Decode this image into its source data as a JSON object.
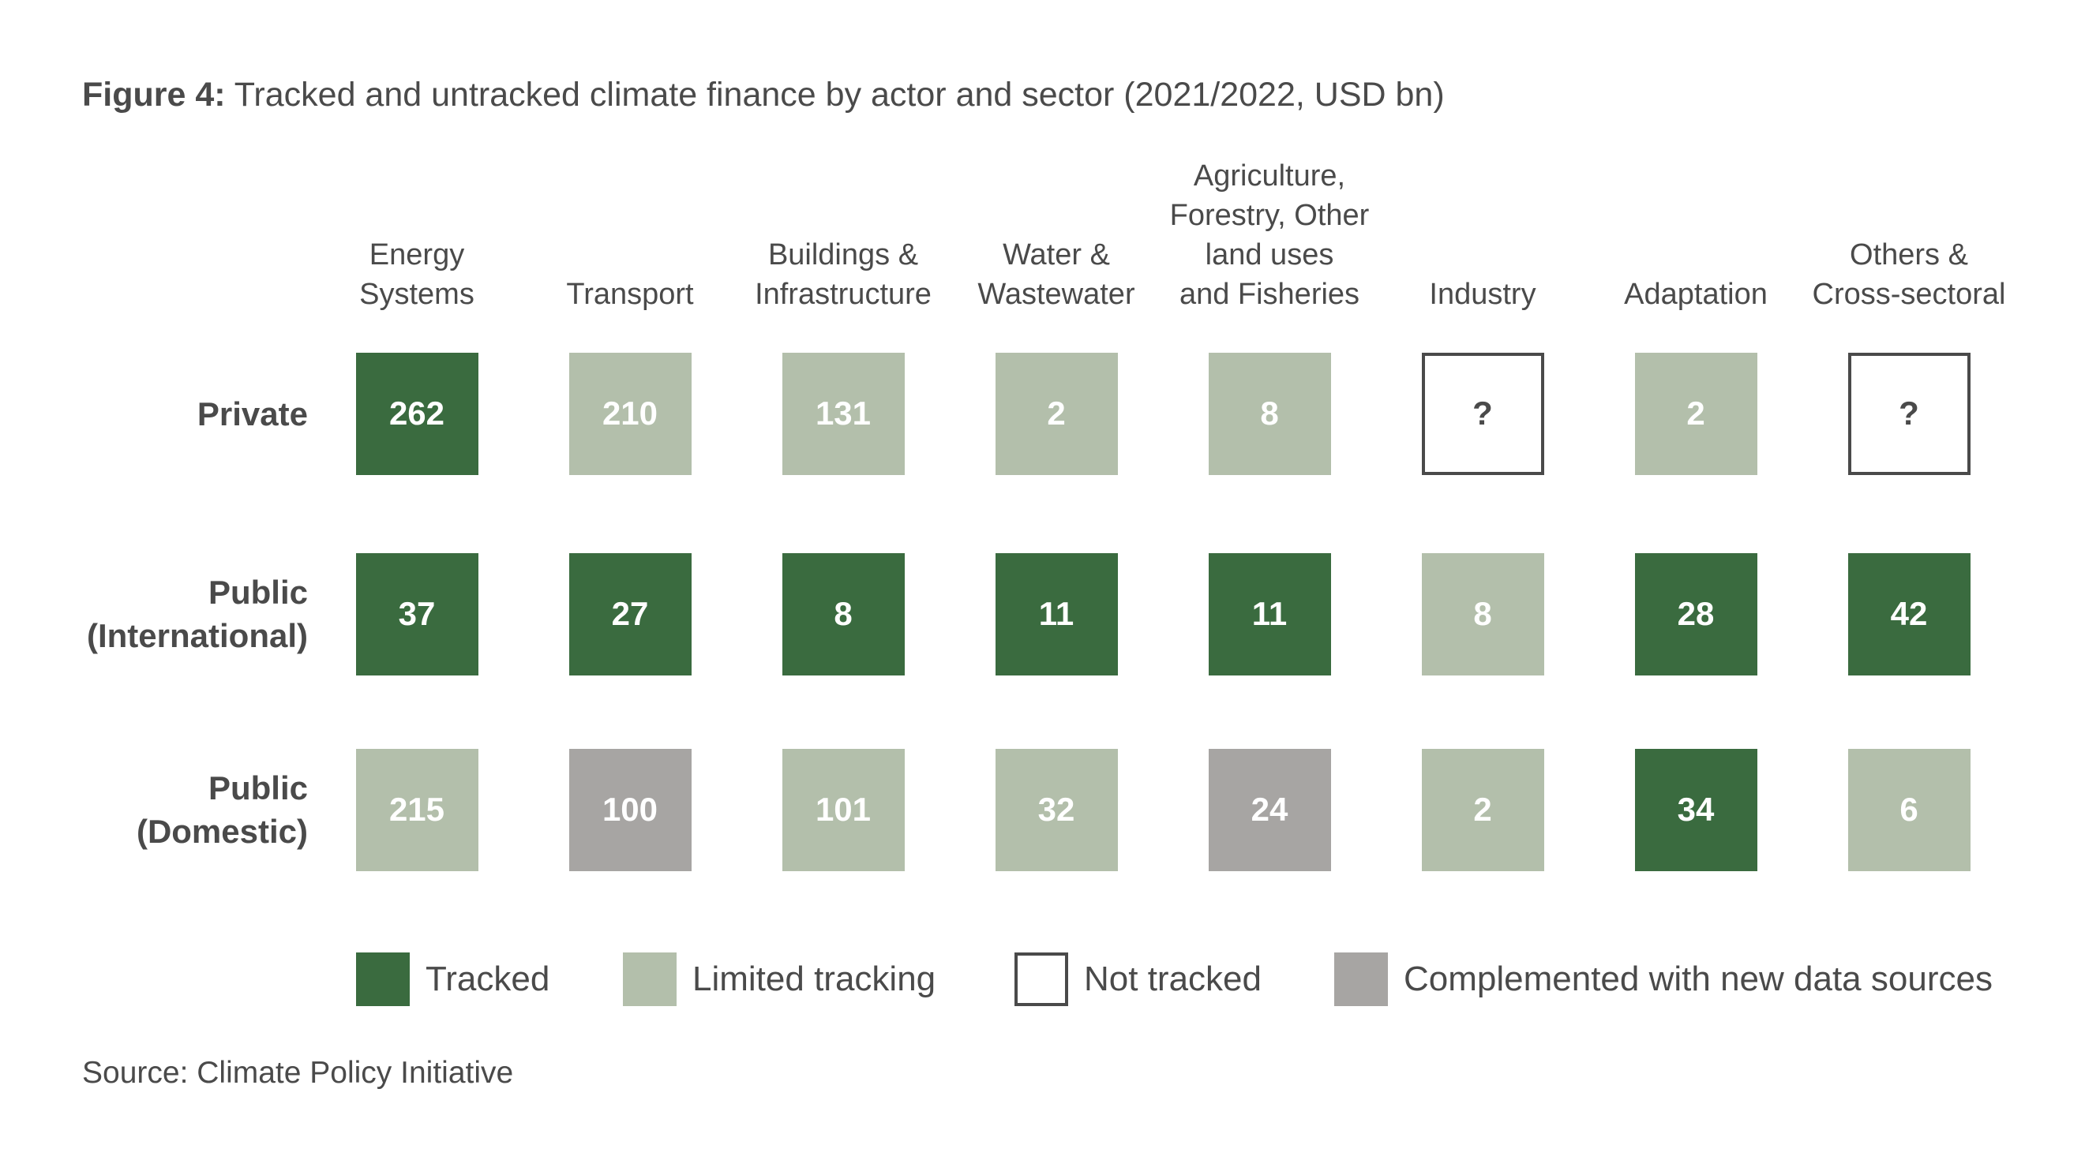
{
  "title": {
    "prefix": "Figure 4:",
    "text": "Tracked and untracked climate finance by actor and sector (2021/2022, USD bn)"
  },
  "source": "Source: Climate Policy Initiative",
  "colors": {
    "tracked": "#3a6b3f",
    "limited": "#b3bfab",
    "not_tracked": "#ffffff",
    "complemented": "#a7a5a3"
  },
  "chart_data": {
    "type": "table",
    "title": "Tracked and untracked climate finance by actor and sector (2021/2022, USD bn)",
    "columns": [
      "Energy\nSystems",
      "Transport",
      "Buildings &\nInfrastructure",
      "Water &\nWastewater",
      "Agriculture,\nForestry, Other\nland uses\nand Fisheries",
      "Industry",
      "Adaptation",
      "Others &\nCross-sectoral"
    ],
    "rows": [
      {
        "label": "Private",
        "values": [
          "262",
          "210",
          "131",
          "2",
          "8",
          "?",
          "2",
          "?"
        ],
        "status": [
          "tracked",
          "limited",
          "limited",
          "limited",
          "limited",
          "not_tracked",
          "limited",
          "not_tracked"
        ]
      },
      {
        "label": "Public\n(International)",
        "values": [
          "37",
          "27",
          "8",
          "11",
          "11",
          "8",
          "28",
          "42"
        ],
        "status": [
          "tracked",
          "tracked",
          "tracked",
          "tracked",
          "tracked",
          "limited",
          "tracked",
          "tracked"
        ]
      },
      {
        "label": "Public\n(Domestic)",
        "values": [
          "215",
          "100",
          "101",
          "32",
          "24",
          "2",
          "34",
          "6"
        ],
        "status": [
          "limited",
          "complemented",
          "limited",
          "limited",
          "complemented",
          "limited",
          "tracked",
          "limited"
        ]
      }
    ],
    "legend": [
      {
        "key": "tracked",
        "label": "Tracked"
      },
      {
        "key": "limited",
        "label": "Limited tracking"
      },
      {
        "key": "not_tracked",
        "label": "Not tracked"
      },
      {
        "key": "complemented",
        "label": "Complemented with new data sources"
      }
    ]
  }
}
